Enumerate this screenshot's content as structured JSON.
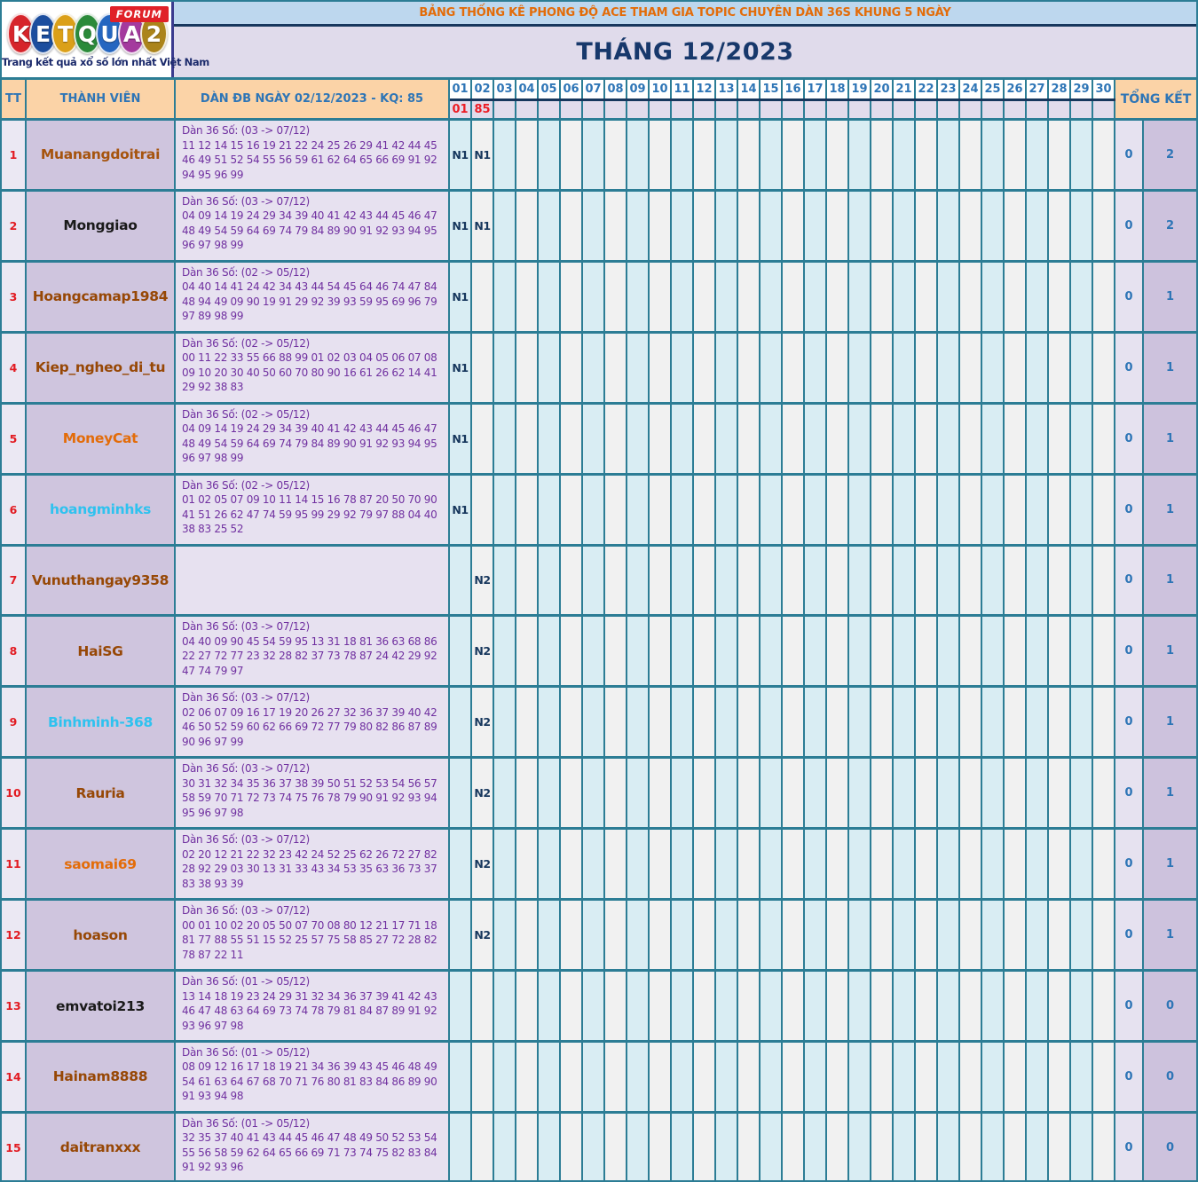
{
  "logo": {
    "letters": [
      {
        "char": "K",
        "color": "#d6252b"
      },
      {
        "char": "E",
        "color": "#1c4e9e"
      },
      {
        "char": "T",
        "color": "#dba019"
      },
      {
        "char": "Q",
        "color": "#2b8a3a"
      },
      {
        "char": "U",
        "color": "#2566c0"
      },
      {
        "char": "A",
        "color": "#a43a9e"
      },
      {
        "char": "2",
        "color": "#ab841b"
      }
    ],
    "forum_badge": "FORUM",
    "tagline": "Trang kết quả xổ số lớn nhất Việt Nam"
  },
  "header": {
    "title": "BẢNG THỐNG KÊ PHONG ĐỘ ACE THAM GIA TOPIC CHUYÊN DÀN 36S KHUNG 5 NGÀY",
    "month_title": "THÁNG 12/2023"
  },
  "columns": {
    "tt": "TT",
    "member": "THÀNH VIÊN",
    "dan": "DÀN ĐB NGÀY 02/12/2023 - KQ: 85",
    "total": "TỔNG KẾT"
  },
  "days": [
    "01",
    "02",
    "03",
    "04",
    "05",
    "06",
    "07",
    "08",
    "09",
    "10",
    "11",
    "12",
    "13",
    "14",
    "15",
    "16",
    "17",
    "18",
    "19",
    "20",
    "21",
    "22",
    "23",
    "24",
    "25",
    "26",
    "27",
    "28",
    "29",
    "30"
  ],
  "results": {
    "01": "01",
    "02": "85"
  },
  "colors": {
    "border_teal": "#2c7d95",
    "header_peach": "#fbd3a7",
    "title_bar_bg": "#bdd7ee",
    "title_orange": "#e36c09",
    "navy": "#17375d",
    "link_blue": "#2e75b6",
    "red": "#ec1c24",
    "dan_purple": "#7030a0",
    "day_odd_bg": "#d9edf3",
    "day_even_bg": "#f1f1f1"
  },
  "rows": [
    {
      "tt": "1",
      "name": "Muanangdoitrai",
      "name_color": "#a6540e",
      "dan_header": "Dàn 36 Số: (03 -> 07/12)",
      "dan_numbers": "11 12 14 15 16 19 21 22 24 25 26 29 41 42 44 45 46 49 51 52 54 55 56 59 61 62 64 65 66 69 91 92 94 95 96 99",
      "marks": {
        "01": "N1",
        "02": "N1"
      },
      "total_left": "0",
      "total_right": "2"
    },
    {
      "tt": "2",
      "name": "Monggiao",
      "name_color": "#1a1a1a",
      "dan_header": "Dàn 36 Số: (03 -> 07/12)",
      "dan_numbers": "04 09 14 19 24 29 34 39 40 41 42 43 44 45 46 47 48 49 54 59 64 69 74 79 84 89 90 91 92 93 94 95 96 97 98 99",
      "marks": {
        "01": "N1",
        "02": "N1"
      },
      "total_left": "0",
      "total_right": "2"
    },
    {
      "tt": "3",
      "name": "Hoangcamap1984",
      "name_color": "#974806",
      "dan_header": "Dàn 36 Số: (02 -> 05/12)",
      "dan_numbers": "04 40 14 41 24 42 34 43 44 54 45 64 46 74 47 84 48 94 49 09 90 19 91 29 92 39 93 59 95 69 96 79 97 89 98 99",
      "marks": {
        "01": "N1"
      },
      "total_left": "0",
      "total_right": "1"
    },
    {
      "tt": "4",
      "name": "Kiep_ngheo_di_tu",
      "name_color": "#974806",
      "dan_header": "Dàn 36 Số: (02 -> 05/12)",
      "dan_numbers": "00 11 22 33 55 66 88 99 01 02 03 04 05 06 07 08 09 10 20 30 40 50 60 70 80 90 16 61 26 62 14 41 29 92 38 83",
      "marks": {
        "01": "N1"
      },
      "total_left": "0",
      "total_right": "1"
    },
    {
      "tt": "5",
      "name": "MoneyCat",
      "name_color": "#e36c09",
      "dan_header": "Dàn 36 Số: (02 -> 05/12)",
      "dan_numbers": "04 09 14 19 24 29 34 39 40 41 42 43 44 45 46 47 48 49 54 59 64 69 74 79 84 89 90 91 92 93 94 95 96 97 98 99",
      "marks": {
        "01": "N1"
      },
      "total_left": "0",
      "total_right": "1"
    },
    {
      "tt": "6",
      "name": "hoangminhks",
      "name_color": "#2fc2ef",
      "dan_header": "Dàn 36 Số: (02 -> 05/12)",
      "dan_numbers": "01 02 05 07 09 10 11 14 15 16 78 87 20 50 70 90 41 51 26 62 47 74 59 95 99 29 92 79 97 88 04 40 38 83 25 52",
      "marks": {
        "01": "N1"
      },
      "total_left": "0",
      "total_right": "1"
    },
    {
      "tt": "7",
      "name": "Vunuthangay9358",
      "name_color": "#974806",
      "dan_header": "",
      "dan_numbers": "",
      "marks": {
        "02": "N2"
      },
      "total_left": "0",
      "total_right": "1"
    },
    {
      "tt": "8",
      "name": "HaiSG",
      "name_color": "#974806",
      "dan_header": "Dàn 36 Số: (03 -> 07/12)",
      "dan_numbers": "04 40 09 90 45 54 59 95 13 31 18 81 36 63 68 86 22 27 72 77 23 32 28 82 37 73 78 87 24 42 29 92 47 74 79 97",
      "marks": {
        "02": "N2"
      },
      "total_left": "0",
      "total_right": "1"
    },
    {
      "tt": "9",
      "name": "Binhminh-368",
      "name_color": "#2fc2ef",
      "dan_header": "Dàn 36 Số: (03 -> 07/12)",
      "dan_numbers": "02 06 07 09 16 17 19 20 26 27 32 36 37 39 40 42 46 50 52 59 60 62 66 69 72 77 79 80 82 86 87 89 90 96 97 99",
      "marks": {
        "02": "N2"
      },
      "total_left": "0",
      "total_right": "1"
    },
    {
      "tt": "10",
      "name": "Rauria",
      "name_color": "#974806",
      "dan_header": "Dàn 36 Số: (03 -> 07/12)",
      "dan_numbers": "30 31 32 34 35 36 37 38 39 50 51 52 53 54 56 57 58 59 70 71 72 73 74 75 76 78 79 90 91 92 93 94 95 96 97 98",
      "marks": {
        "02": "N2"
      },
      "total_left": "0",
      "total_right": "1"
    },
    {
      "tt": "11",
      "name": "saomai69",
      "name_color": "#e36c09",
      "dan_header": "Dàn 36 Số: (03 -> 07/12)",
      "dan_numbers": "02 20 12 21 22 32 23 42 24 52 25 62 26 72 27 82 28 92 29 03 30 13 31 33 43 34 53 35 63 36 73 37 83 38 93 39",
      "marks": {
        "02": "N2"
      },
      "total_left": "0",
      "total_right": "1"
    },
    {
      "tt": "12",
      "name": "hoason",
      "name_color": "#974806",
      "dan_header": "Dàn 36 Số: (03 -> 07/12)",
      "dan_numbers": "00 01 10 02 20 05 50 07 70 08 80 12 21 17 71 18 81 77 88 55 51 15 52 25 57 75 58 85 27 72 28 82 78 87 22 11",
      "marks": {
        "02": "N2"
      },
      "total_left": "0",
      "total_right": "1"
    },
    {
      "tt": "13",
      "name": "emvatoi213",
      "name_color": "#1a1a1a",
      "dan_header": "Dàn 36 Số: (01 -> 05/12)",
      "dan_numbers": "13 14 18 19 23 24 29 31 32 34 36 37 39 41 42 43 46 47 48 63 64 69 73 74 78 79 81 84 87 89 91 92 93 96 97 98",
      "marks": {},
      "total_left": "0",
      "total_right": "0"
    },
    {
      "tt": "14",
      "name": "Hainam8888",
      "name_color": "#974806",
      "dan_header": "Dàn 36 Số: (01 -> 05/12)",
      "dan_numbers": "08 09 12 16 17 18 19 21 34 36 39 43 45 46 48 49 54 61 63 64 67 68 70 71 76 80 81 83 84 86 89 90 91 93 94 98",
      "marks": {},
      "total_left": "0",
      "total_right": "0"
    },
    {
      "tt": "15",
      "name": "daitranxxx",
      "name_color": "#974806",
      "dan_header": "Dàn 36 Số: (01 -> 05/12)",
      "dan_numbers": "32 35 37 40 41 43 44 45 46 47 48 49 50 52 53 54 55 56 58 59 62 64 65 66 69 71 73 74 75 82 83 84 91 92 93 96",
      "marks": {},
      "total_left": "0",
      "total_right": "0"
    }
  ]
}
